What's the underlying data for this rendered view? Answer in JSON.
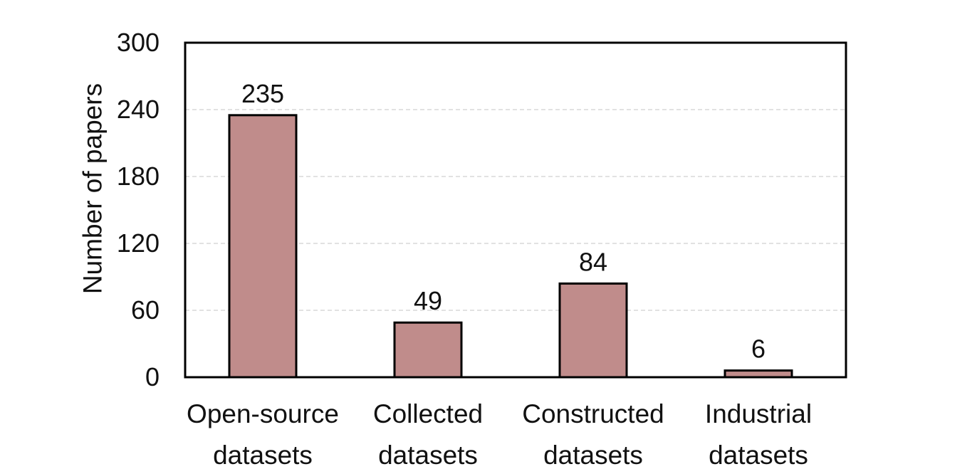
{
  "chart_data": {
    "type": "bar",
    "categories": [
      [
        "Open-source",
        "datasets"
      ],
      [
        "Collected",
        "datasets"
      ],
      [
        "Constructed",
        "datasets"
      ],
      [
        "Industrial",
        "datasets"
      ]
    ],
    "values": [
      235,
      49,
      84,
      6
    ],
    "data_labels": [
      "235",
      "49",
      "84",
      "6"
    ],
    "ylabel": "Number of papers",
    "xlabel": "",
    "ylim": [
      0,
      300
    ],
    "yticks": [
      0,
      60,
      120,
      180,
      240,
      300
    ],
    "grid": "horizontal dashed",
    "bar_color": "#c08c8b",
    "bar_edge_color": "#000000",
    "grid_color": "#d9d9d9"
  }
}
